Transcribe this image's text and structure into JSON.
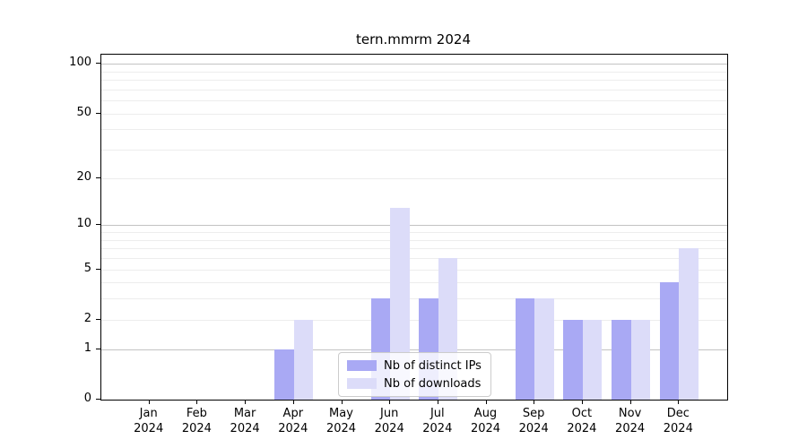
{
  "chart_data": {
    "type": "bar",
    "title": "tern.mmrm 2024",
    "categories": [
      "Jan 2024",
      "Feb 2024",
      "Mar 2024",
      "Apr 2024",
      "May 2024",
      "Jun 2024",
      "Jul 2024",
      "Aug 2024",
      "Sep 2024",
      "Oct 2024",
      "Nov 2024",
      "Dec 2024"
    ],
    "series": [
      {
        "name": "Nb of distinct IPs",
        "color": "#a9a9f4",
        "values": [
          0,
          0,
          0,
          1,
          0,
          3,
          3,
          0,
          3,
          2,
          2,
          4
        ]
      },
      {
        "name": "Nb of downloads",
        "color": "#dcdcf9",
        "values": [
          0,
          0,
          0,
          2,
          0,
          13,
          6,
          0,
          3,
          2,
          2,
          7
        ]
      }
    ],
    "xlabel": "",
    "ylabel": "",
    "y_scale": "log1p-base10",
    "ylim": [
      0,
      100
    ],
    "yticks": [
      0,
      1,
      2,
      5,
      10,
      20,
      50,
      100
    ],
    "gridlines": {
      "major": [
        1,
        10,
        100
      ],
      "minor": [
        2,
        3,
        4,
        5,
        6,
        7,
        8,
        9,
        20,
        30,
        40,
        50,
        60,
        70,
        80,
        90
      ]
    },
    "legend_position": "lower center",
    "grid": "on"
  },
  "colors": {
    "spine": "#000000",
    "major_grid": "#c3c3c3",
    "minor_grid": "#ededed",
    "background": "#ffffff"
  }
}
